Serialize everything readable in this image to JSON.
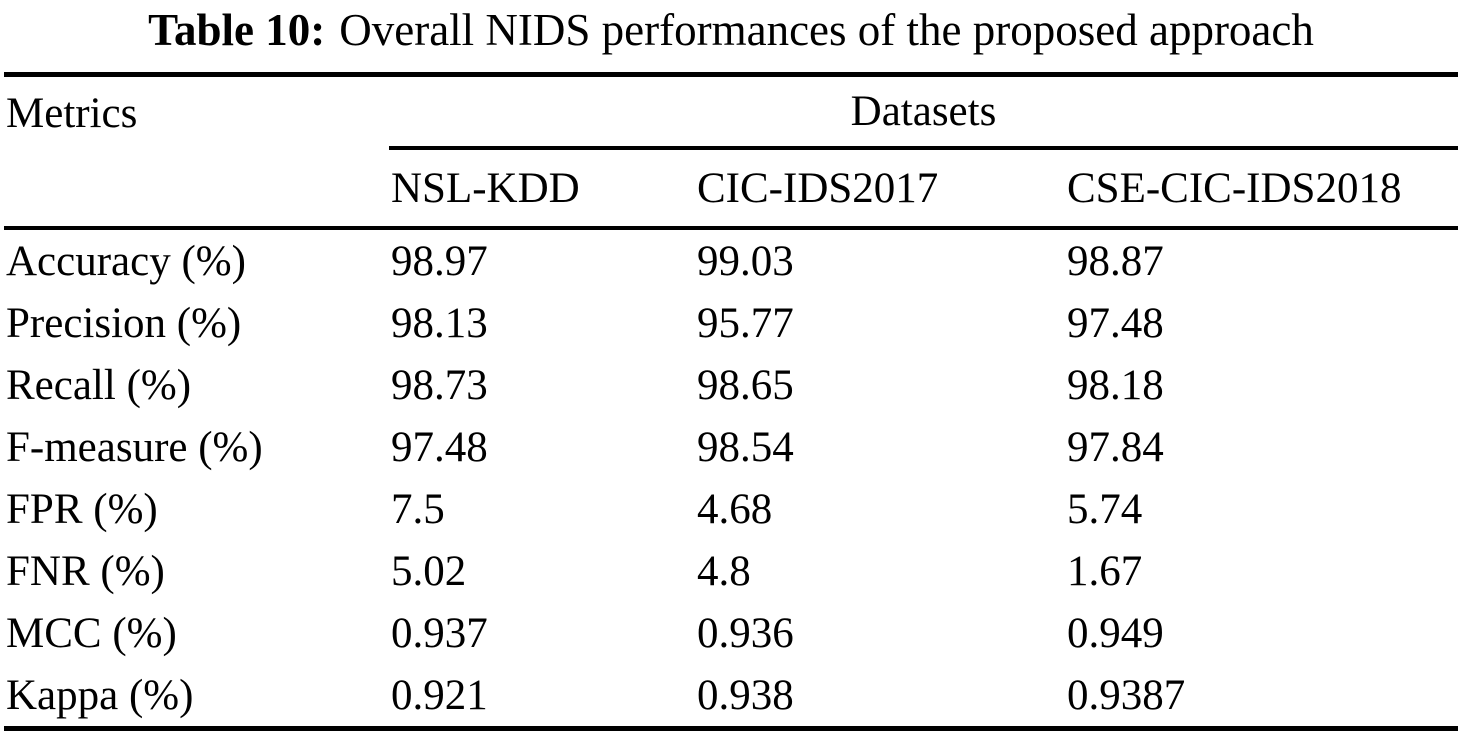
{
  "title": {
    "label": "Table 10:",
    "text": "Overall NIDS performances of the proposed approach"
  },
  "table": {
    "metrics_header": "Metrics",
    "datasets_header": "Datasets",
    "columns": [
      "NSL-KDD",
      "CIC-IDS2017",
      "CSE-CIC-IDS2018"
    ],
    "rows": [
      {
        "metric": "Accuracy (%)",
        "values": [
          "98.97",
          "99.03",
          "98.87"
        ]
      },
      {
        "metric": "Precision (%)",
        "values": [
          "98.13",
          "95.77",
          "97.48"
        ]
      },
      {
        "metric": "Recall (%)",
        "values": [
          "98.73",
          "98.65",
          "98.18"
        ]
      },
      {
        "metric": "F-measure (%)",
        "values": [
          "97.48",
          "98.54",
          "97.84"
        ]
      },
      {
        "metric": "FPR (%)",
        "values": [
          "7.5",
          "4.68",
          "5.74"
        ]
      },
      {
        "metric": "FNR (%)",
        "values": [
          "5.02",
          "4.8",
          "1.67"
        ]
      },
      {
        "metric": "MCC (%)",
        "values": [
          "0.937",
          "0.936",
          "0.949"
        ]
      },
      {
        "metric": "Kappa (%)",
        "values": [
          "0.921",
          "0.938",
          "0.9387"
        ]
      }
    ]
  },
  "chart_data": {
    "type": "table",
    "title": "Table 10: Overall NIDS performances of the proposed approach",
    "categories": [
      "NSL-KDD",
      "CIC-IDS2017",
      "CSE-CIC-IDS2018"
    ],
    "series": [
      {
        "name": "Accuracy (%)",
        "values": [
          98.97,
          99.03,
          98.87
        ]
      },
      {
        "name": "Precision (%)",
        "values": [
          98.13,
          95.77,
          97.48
        ]
      },
      {
        "name": "Recall (%)",
        "values": [
          98.73,
          98.65,
          98.18
        ]
      },
      {
        "name": "F-measure (%)",
        "values": [
          97.48,
          98.54,
          97.84
        ]
      },
      {
        "name": "FPR (%)",
        "values": [
          7.5,
          4.68,
          5.74
        ]
      },
      {
        "name": "FNR (%)",
        "values": [
          5.02,
          4.8,
          1.67
        ]
      },
      {
        "name": "MCC (%)",
        "values": [
          0.937,
          0.936,
          0.949
        ]
      },
      {
        "name": "Kappa (%)",
        "values": [
          0.921,
          0.938,
          0.9387
        ]
      }
    ]
  },
  "colors": {
    "text": "#000000",
    "background": "#ffffff",
    "rule": "#000000"
  }
}
